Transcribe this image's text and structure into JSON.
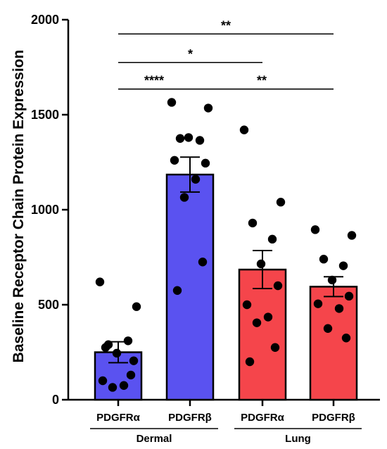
{
  "chart_data": {
    "type": "bar",
    "ylabel": "Baseline Receptor  Chain Protein  Expression",
    "ylim": [
      0,
      2000
    ],
    "yticks": [
      0,
      500,
      1000,
      1500,
      2000
    ],
    "categories": [
      "PDGFRα",
      "PDGFRβ",
      "PDGFRα",
      "PDGFRβ"
    ],
    "groups": [
      {
        "label": "Dermal",
        "categories": [
          0,
          1
        ]
      },
      {
        "label": "Lung",
        "categories": [
          2,
          3
        ]
      }
    ],
    "bars": [
      {
        "mean": 250,
        "sem": 55,
        "color": "#5a52f0",
        "points": [
          620,
          490,
          290,
          310,
          245,
          205,
          100,
          75,
          65,
          130,
          275
        ]
      },
      {
        "mean": 1185,
        "sem": 92,
        "color": "#5a52f0",
        "points": [
          1565,
          1535,
          1375,
          1365,
          1380,
          1245,
          1260,
          1160,
          1065,
          725,
          575
        ]
      },
      {
        "mean": 685,
        "sem": 100,
        "color": "#f5454b",
        "points": [
          1420,
          1040,
          930,
          845,
          715,
          600,
          500,
          435,
          405,
          275,
          200
        ]
      },
      {
        "mean": 595,
        "sem": 52,
        "color": "#f5454b",
        "points": [
          895,
          865,
          740,
          705,
          630,
          545,
          505,
          480,
          375,
          325
        ]
      }
    ],
    "significance": [
      {
        "from": 0,
        "to": 3,
        "label": "**",
        "y": 1925
      },
      {
        "from": 0,
        "to": 2,
        "label": "*",
        "y": 1775
      },
      {
        "from": 0,
        "to": 1,
        "label": "****",
        "y": 1635
      },
      {
        "from": 1,
        "to": 3,
        "label": "**",
        "y": 1635
      }
    ],
    "grid": false,
    "legend": "none"
  }
}
